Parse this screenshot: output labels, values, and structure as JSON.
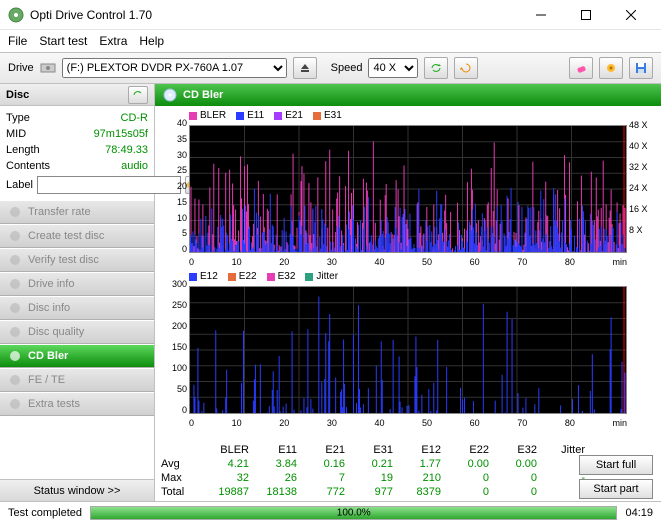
{
  "window": {
    "title": "Opti Drive Control 1.70"
  },
  "menu": [
    "File",
    "Start test",
    "Extra",
    "Help"
  ],
  "toolbar": {
    "drive_label": "Drive",
    "speed_label": "Speed",
    "drive_selected": "(F:)   PLEXTOR DVDR   PX-760A 1.07",
    "speed_selected": "40 X"
  },
  "disc": {
    "header": "Disc",
    "type_label": "Type",
    "type_value": "CD-R",
    "mid_label": "MID",
    "mid_value": "97m15s05f",
    "length_label": "Length",
    "length_value": "78:49.33",
    "contents_label": "Contents",
    "contents_value": "audio",
    "label_label": "Label",
    "label_value": ""
  },
  "nav": [
    "Transfer rate",
    "Create test disc",
    "Verify test disc",
    "Drive info",
    "Disc info",
    "Disc quality",
    "CD Bler",
    "FE / TE",
    "Extra tests"
  ],
  "nav_active": 6,
  "status_window": "Status window >>",
  "panel": {
    "title": "CD Bler",
    "chart1": {
      "series": [
        {
          "name": "BLER",
          "color": "#e63cb4"
        },
        {
          "name": "E11",
          "color": "#2a3cff"
        },
        {
          "name": "E21",
          "color": "#a63cff"
        },
        {
          "name": "E31",
          "color": "#e66c3c"
        }
      ],
      "ymax": 40,
      "ystep": 5,
      "y2labels": [
        "48 X",
        "40 X",
        "32 X",
        "24 X",
        "16 X",
        "8 X"
      ],
      "xmax": 80,
      "xstep": 10,
      "xlabel": "min",
      "background": "#000000",
      "grid": "#333333"
    },
    "chart2": {
      "series": [
        {
          "name": "E12",
          "color": "#2a3cff"
        },
        {
          "name": "E22",
          "color": "#e66c3c"
        },
        {
          "name": "E32",
          "color": "#e63cb4"
        },
        {
          "name": "Jitter",
          "color": "#2ca080"
        }
      ],
      "ymax": 300,
      "ystep": 50,
      "xmax": 80,
      "xstep": 10,
      "xlabel": "min",
      "background": "#000000",
      "grid": "#333333"
    },
    "stats": {
      "cols": [
        "BLER",
        "E11",
        "E21",
        "E31",
        "E12",
        "E22",
        "E32",
        "Jitter"
      ],
      "rows": [
        {
          "label": "Avg",
          "vals": [
            "4.21",
            "3.84",
            "0.16",
            "0.21",
            "1.77",
            "0.00",
            "0.00",
            "-"
          ]
        },
        {
          "label": "Max",
          "vals": [
            "32",
            "26",
            "7",
            "19",
            "210",
            "0",
            "0",
            "-"
          ]
        },
        {
          "label": "Total",
          "vals": [
            "19887",
            "18138",
            "772",
            "977",
            "8379",
            "0",
            "0",
            "-"
          ]
        }
      ]
    },
    "buttons": {
      "full": "Start full",
      "part": "Start part"
    }
  },
  "statusbar": {
    "text": "Test completed",
    "percent": "100.0%",
    "time": "04:19"
  }
}
